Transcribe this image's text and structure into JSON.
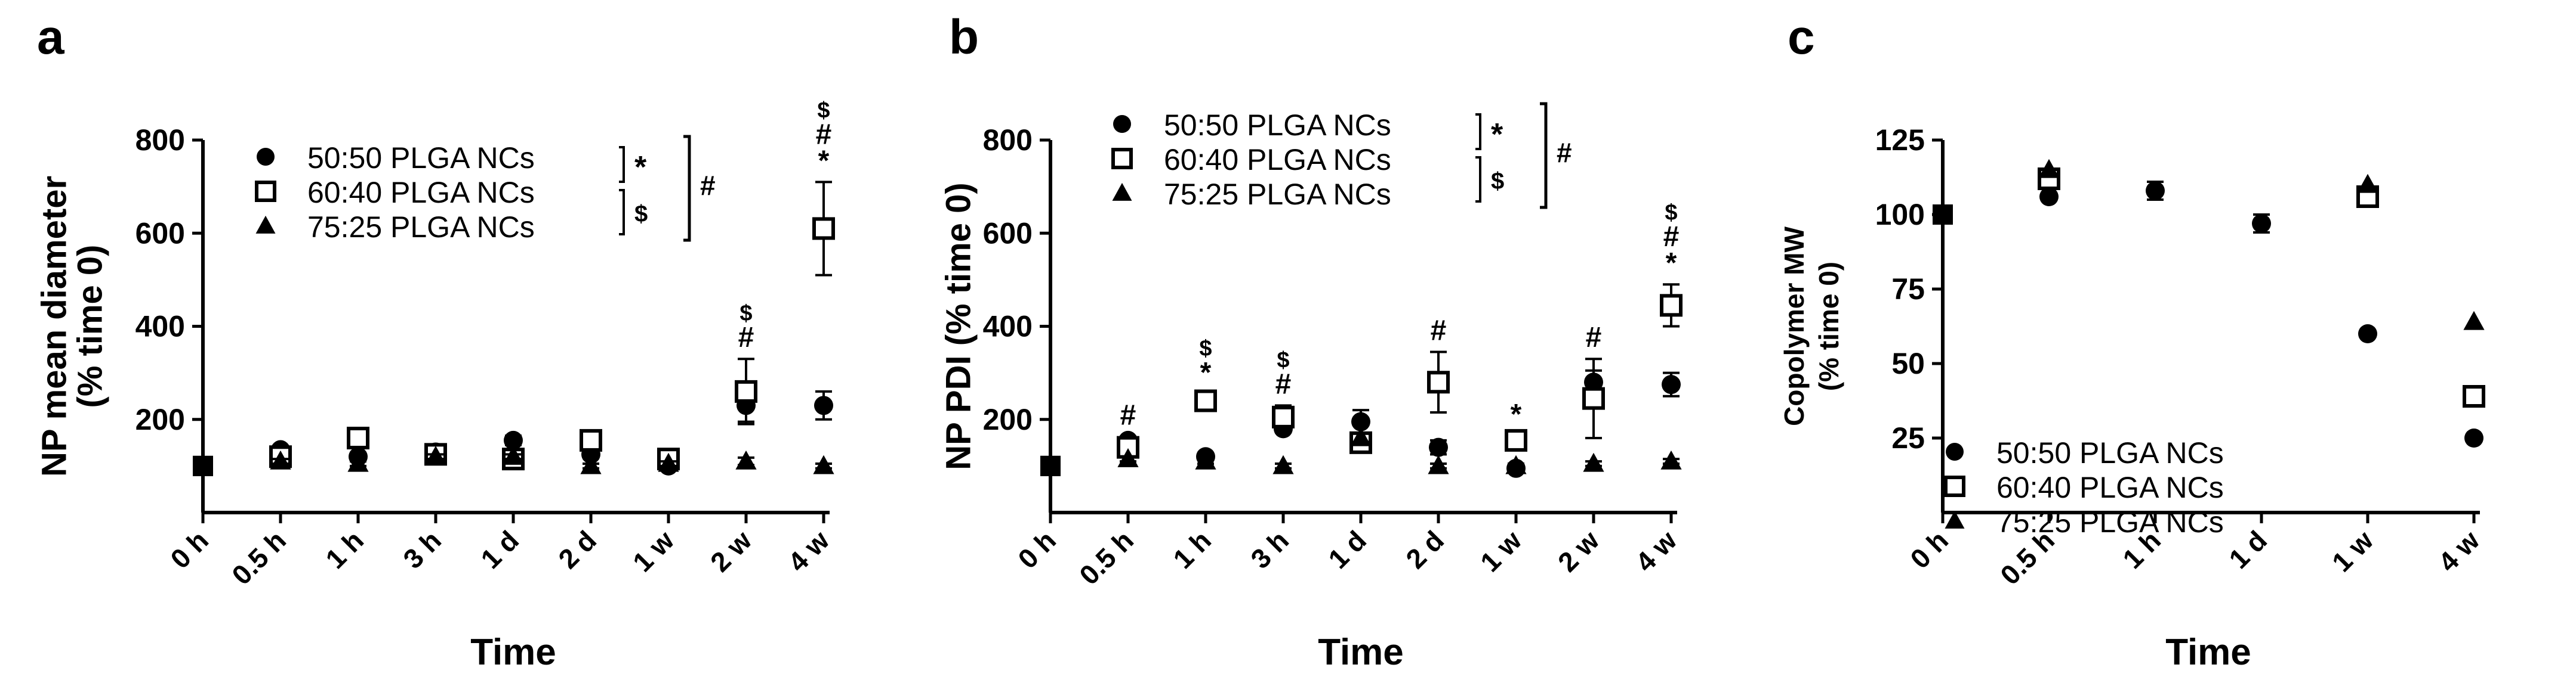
{
  "chart_data": [
    {
      "panel_label": "a",
      "type": "scatter",
      "xlabel": "Time",
      "ylabel": "NP mean diameter\n(% time 0)",
      "categories": [
        "0 h",
        "0.5 h",
        "1 h",
        "3 h",
        "1 d",
        "2 d",
        "1 w",
        "2 w",
        "4 w"
      ],
      "yticks": [
        "200",
        "400",
        "600",
        "800"
      ],
      "ylim": [
        0,
        800
      ],
      "series": [
        {
          "name": "50:50 PLGA NCs",
          "marker": "circle",
          "values": [
            100,
            135,
            120,
            130,
            155,
            125,
            100,
            230,
            230
          ],
          "errors": [
            0,
            8,
            8,
            8,
            10,
            8,
            5,
            35,
            30
          ]
        },
        {
          "name": "60:40 PLGA NCs",
          "marker": "square-open",
          "values": [
            100,
            120,
            160,
            125,
            115,
            155,
            115,
            260,
            610
          ],
          "errors": [
            0,
            8,
            10,
            8,
            8,
            10,
            5,
            70,
            100
          ]
        },
        {
          "name": "75:25 PLGA NCs",
          "marker": "triangle",
          "values": [
            100,
            110,
            105,
            120,
            120,
            100,
            105,
            110,
            100
          ],
          "errors": [
            0,
            5,
            5,
            5,
            5,
            5,
            5,
            8,
            5
          ]
        }
      ],
      "legend_position": "top",
      "significance": {
        "legend_marks": [
          "*",
          "$",
          "#"
        ],
        "annotations": [
          {
            "category": "2 w",
            "marks": [
              "$",
              "#"
            ]
          },
          {
            "category": "4 w",
            "marks": [
              "$",
              "#",
              "*"
            ]
          }
        ]
      }
    },
    {
      "panel_label": "b",
      "type": "scatter",
      "xlabel": "Time",
      "ylabel": "NP PDI (% time 0)",
      "categories": [
        "0 h",
        "0.5 h",
        "1 h",
        "3 h",
        "1 d",
        "2 d",
        "1 w",
        "2 w",
        "4 w"
      ],
      "yticks": [
        "200",
        "400",
        "600",
        "800"
      ],
      "ylim": [
        0,
        800
      ],
      "series": [
        {
          "name": "50:50 PLGA NCs",
          "marker": "circle",
          "values": [
            100,
            155,
            120,
            180,
            195,
            140,
            95,
            280,
            275
          ],
          "errors": [
            0,
            8,
            8,
            8,
            25,
            15,
            5,
            25,
            25
          ]
        },
        {
          "name": "60:40 PLGA NCs",
          "marker": "square-open",
          "values": [
            100,
            140,
            240,
            205,
            150,
            280,
            155,
            245,
            445
          ],
          "errors": [
            0,
            10,
            15,
            25,
            15,
            65,
            10,
            85,
            45
          ]
        },
        {
          "name": "75:25 PLGA NCs",
          "marker": "triangle",
          "values": [
            100,
            115,
            110,
            100,
            160,
            100,
            100,
            105,
            110
          ],
          "errors": [
            0,
            5,
            5,
            5,
            10,
            5,
            5,
            5,
            5
          ]
        }
      ],
      "legend_position": "top",
      "significance": {
        "legend_marks": [
          "*",
          "$",
          "#"
        ],
        "annotations": [
          {
            "category": "0.5 h",
            "marks": [
              "#"
            ]
          },
          {
            "category": "1 h",
            "marks": [
              "$",
              "*"
            ]
          },
          {
            "category": "3 h",
            "marks": [
              "$",
              "#"
            ]
          },
          {
            "category": "2 d",
            "marks": [
              "#"
            ]
          },
          {
            "category": "1 w",
            "marks": [
              "*"
            ]
          },
          {
            "category": "2 w",
            "marks": [
              "#"
            ]
          },
          {
            "category": "4 w",
            "marks": [
              "$",
              "#",
              "*"
            ]
          }
        ]
      }
    },
    {
      "panel_label": "c",
      "type": "scatter",
      "xlabel": "Time",
      "ylabel": "Copolymer MW\n(% time 0)",
      "categories": [
        "0 h",
        "0.5 h",
        "1 h",
        "1 d",
        "1 w",
        "4 w"
      ],
      "yticks": [
        "25",
        "50",
        "75",
        "100",
        "125"
      ],
      "ylim": [
        0,
        125
      ],
      "series": [
        {
          "name": "50:50 PLGA NCs",
          "marker": "circle",
          "values": [
            100,
            106,
            108,
            97,
            60,
            25
          ],
          "errors": [
            0,
            0,
            3,
            3,
            0,
            0
          ]
        },
        {
          "name": "60:40 PLGA NCs",
          "marker": "square-open",
          "values": [
            100,
            112,
            null,
            null,
            106,
            39
          ],
          "errors": [
            0,
            0,
            0,
            0,
            0,
            0
          ]
        },
        {
          "name": "75:25 PLGA NCs",
          "marker": "triangle",
          "values": [
            100,
            115,
            null,
            null,
            110,
            64
          ],
          "errors": [
            0,
            0,
            0,
            0,
            0,
            0
          ]
        }
      ],
      "legend_position": "bottom-left"
    }
  ]
}
